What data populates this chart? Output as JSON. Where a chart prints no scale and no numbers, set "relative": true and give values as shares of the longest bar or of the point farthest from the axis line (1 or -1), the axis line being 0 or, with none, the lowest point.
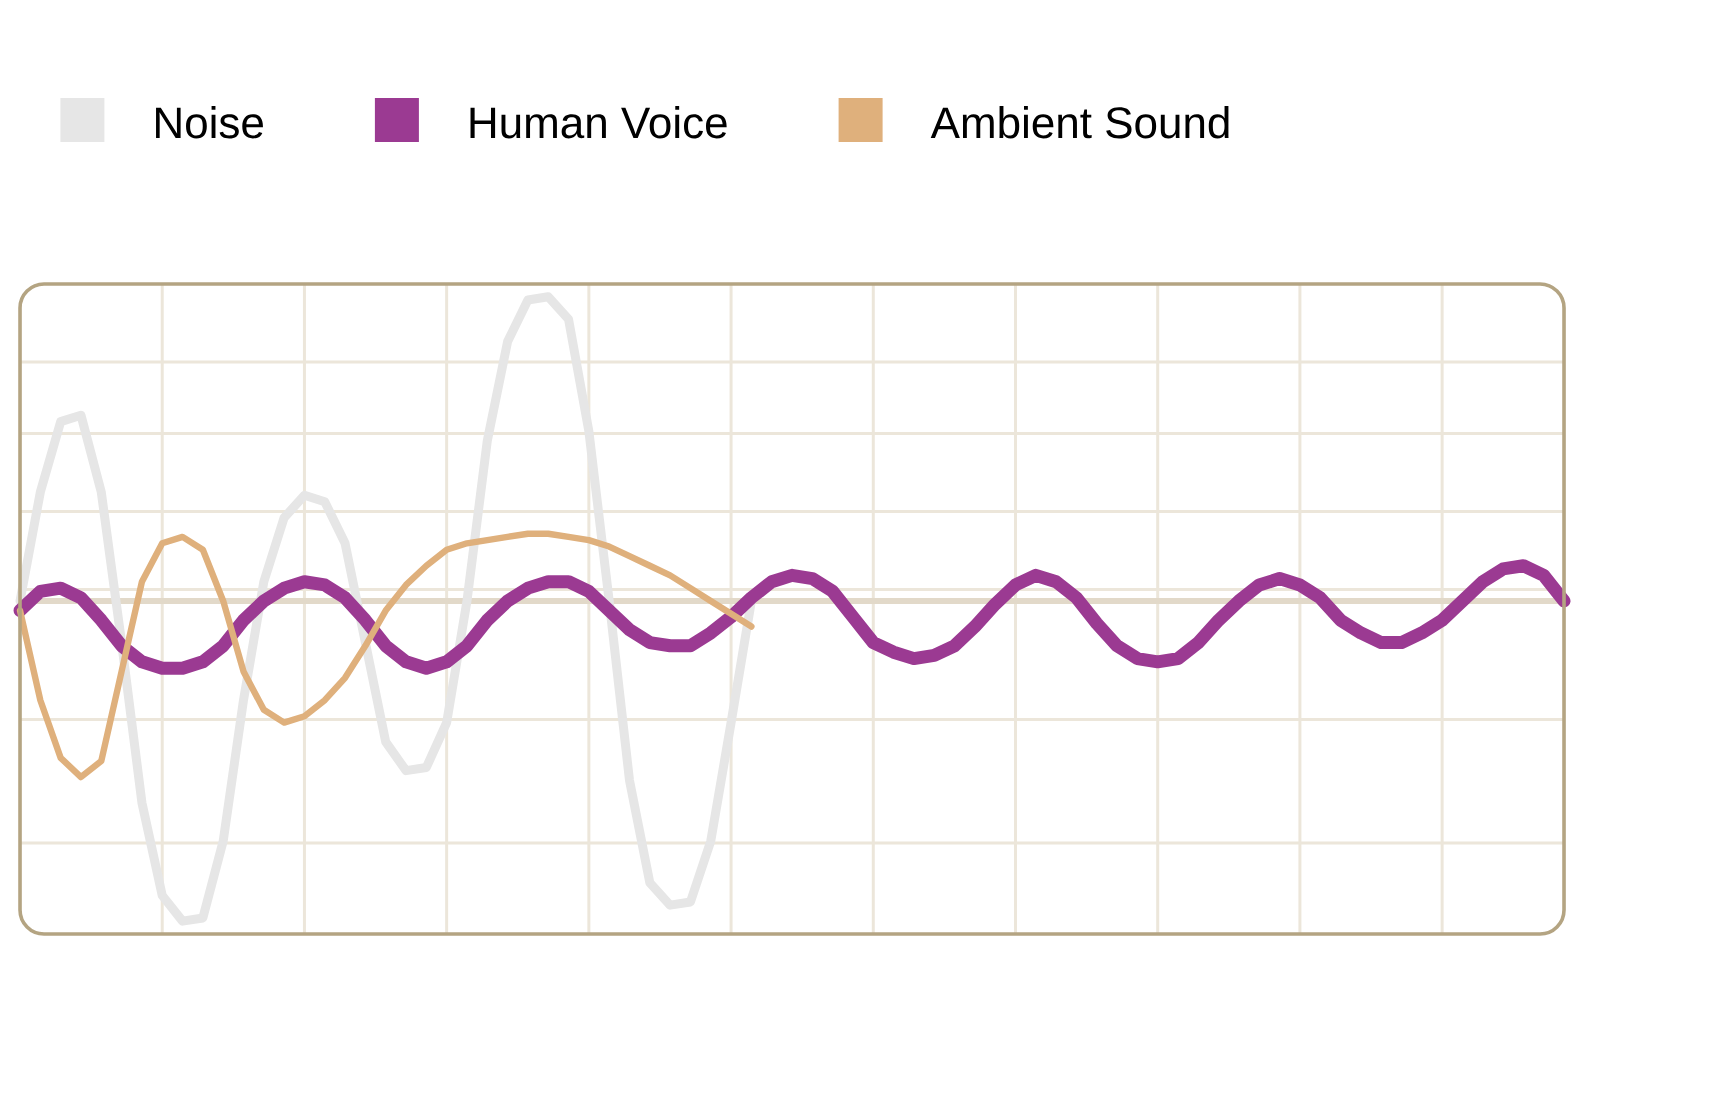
{
  "chart_data": {
    "type": "line",
    "relative": true,
    "grid": true,
    "legend": "top left",
    "line_style": "solid",
    "marker": "none",
    "categories": [
      null,
      null,
      null,
      null,
      null,
      null,
      null,
      null,
      null,
      null,
      null,
      null,
      null,
      null,
      null,
      null,
      null,
      null,
      null,
      null,
      null,
      null,
      null,
      null,
      null,
      null,
      null,
      null,
      null,
      null,
      null,
      null,
      null,
      null,
      null,
      null,
      null,
      null,
      null,
      null,
      null,
      null,
      null,
      null,
      null,
      null,
      null,
      null,
      null,
      null,
      null,
      null,
      null,
      null,
      null,
      null,
      null,
      null,
      null,
      null,
      null,
      null,
      null,
      null,
      null,
      null,
      null,
      null,
      null,
      null,
      null,
      null,
      null,
      null,
      null,
      null,
      null
    ],
    "series": [
      {
        "name": "Noise",
        "color": "#e6e6e6",
        "values": [
          0,
          0.34,
          0.56,
          0.58,
          0.34,
          -0.13,
          -0.63,
          -0.92,
          -1,
          -0.99,
          -0.75,
          -0.31,
          0.06,
          0.26,
          0.33,
          0.31,
          0.18,
          -0.13,
          -0.44,
          -0.53,
          -0.52,
          -0.38,
          0,
          0.5,
          0.81,
          0.94,
          0.95,
          0.88,
          0.53,
          0,
          -0.56,
          -0.88,
          -0.95,
          -0.94,
          -0.75,
          -0.38,
          0,
          null,
          null,
          null,
          null,
          null,
          null,
          null,
          null,
          null,
          null,
          null,
          null,
          null,
          null,
          null,
          null,
          null,
          null,
          null,
          null,
          null,
          null,
          null,
          null,
          null,
          null,
          null,
          null,
          null,
          null,
          null,
          null,
          null,
          null,
          null,
          null,
          null,
          null,
          null,
          null
        ]
      },
      {
        "name": "Human Voice",
        "color": "#9b3a92",
        "values": [
          -0.03,
          0.03,
          0.04,
          0.01,
          -0.06,
          -0.14,
          -0.19,
          -0.21,
          -0.21,
          -0.19,
          -0.14,
          -0.06,
          0,
          0.04,
          0.06,
          0.05,
          0.01,
          -0.06,
          -0.14,
          -0.19,
          -0.21,
          -0.19,
          -0.14,
          -0.06,
          0,
          0.04,
          0.06,
          0.06,
          0.03,
          -0.03,
          -0.09,
          -0.13,
          -0.14,
          -0.14,
          -0.1,
          -0.05,
          0.01,
          0.06,
          0.08,
          0.07,
          0.03,
          -0.05,
          -0.13,
          -0.16,
          -0.18,
          -0.17,
          -0.14,
          -0.08,
          -0.01,
          0.05,
          0.08,
          0.06,
          0.01,
          -0.07,
          -0.14,
          -0.18,
          -0.19,
          -0.18,
          -0.13,
          -0.06,
          0,
          0.05,
          0.07,
          0.05,
          0.01,
          -0.06,
          -0.1,
          -0.13,
          -0.13,
          -0.1,
          -0.06,
          0,
          0.06,
          0.1,
          0.11,
          0.08,
          0
        ]
      },
      {
        "name": "Ambient Sound",
        "color": "#dfb07c",
        "values": [
          -0.03,
          -0.31,
          -0.49,
          -0.55,
          -0.5,
          -0.22,
          0.06,
          0.18,
          0.2,
          0.16,
          0,
          -0.22,
          -0.34,
          -0.38,
          -0.36,
          -0.31,
          -0.24,
          -0.14,
          -0.03,
          0.05,
          0.11,
          0.16,
          0.18,
          0.19,
          0.2,
          0.21,
          0.21,
          0.2,
          0.19,
          0.17,
          0.14,
          0.11,
          0.08,
          0.04,
          0,
          -0.04,
          -0.08,
          null,
          null,
          null,
          null,
          null,
          null,
          null,
          null,
          null,
          null,
          null,
          null,
          null,
          null,
          null,
          null,
          null,
          null,
          null,
          null,
          null,
          null,
          null,
          null,
          null,
          null,
          null,
          null,
          null,
          null,
          null,
          null,
          null,
          null,
          null,
          null,
          null,
          null,
          null,
          null
        ]
      }
    ]
  }
}
